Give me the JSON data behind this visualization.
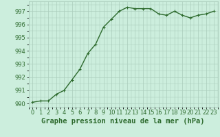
{
  "x": [
    0,
    1,
    2,
    3,
    4,
    5,
    6,
    7,
    8,
    9,
    10,
    11,
    12,
    13,
    14,
    15,
    16,
    17,
    18,
    19,
    20,
    21,
    22,
    23
  ],
  "y": [
    990.1,
    990.2,
    990.2,
    990.7,
    991.0,
    991.8,
    992.6,
    993.8,
    994.5,
    995.8,
    996.4,
    997.0,
    997.3,
    997.2,
    997.2,
    997.2,
    996.8,
    996.7,
    997.0,
    996.7,
    996.5,
    996.7,
    996.8,
    997.0
  ],
  "line_color": "#2d6a2d",
  "marker_color": "#2d6a2d",
  "bg_color": "#cceedd",
  "grid_color": "#aaccbb",
  "xlabel": "Graphe pression niveau de la mer (hPa)",
  "ylim": [
    989.75,
    997.75
  ],
  "xlim": [
    -0.5,
    23.5
  ],
  "yticks": [
    990,
    991,
    992,
    993,
    994,
    995,
    996,
    997
  ],
  "xticks": [
    0,
    1,
    2,
    3,
    4,
    5,
    6,
    7,
    8,
    9,
    10,
    11,
    12,
    13,
    14,
    15,
    16,
    17,
    18,
    19,
    20,
    21,
    22,
    23
  ],
  "xtick_labels": [
    "0",
    "1",
    "2",
    "3",
    "4",
    "5",
    "6",
    "7",
    "8",
    "9",
    "10",
    "11",
    "12",
    "13",
    "14",
    "15",
    "16",
    "17",
    "18",
    "19",
    "20",
    "21",
    "22",
    "23"
  ],
  "xlabel_fontsize": 7.5,
  "xlabel_color": "#2d6a2d",
  "tick_fontsize": 6,
  "tick_color": "#2d6a2d",
  "line_width": 1.0,
  "marker_size": 2.5
}
